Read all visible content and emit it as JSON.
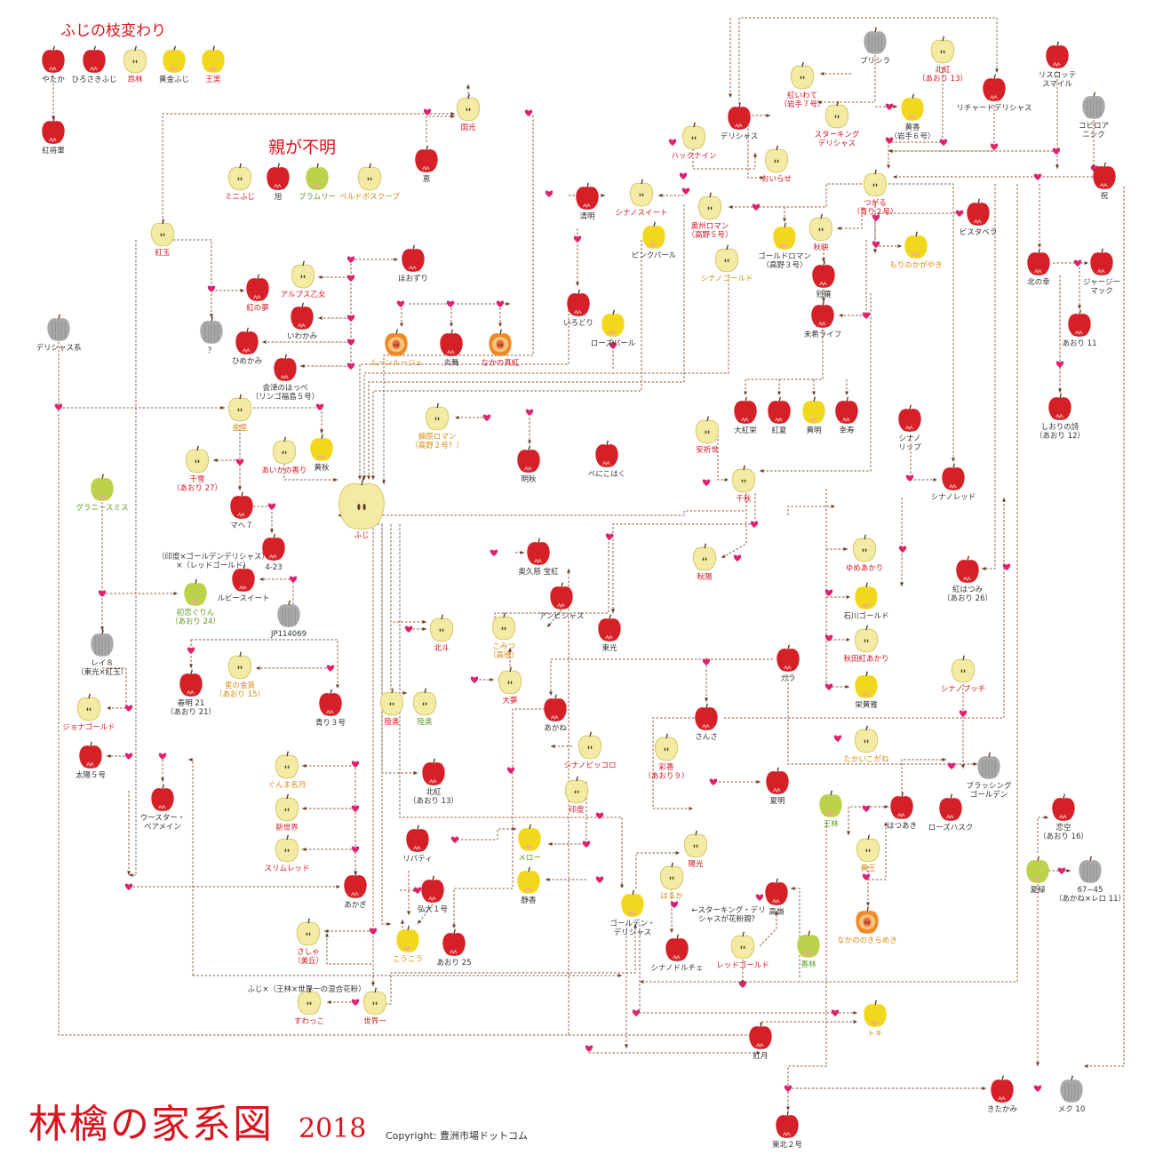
{
  "title": "林檎の家系図",
  "year": "2018",
  "copyright": "Copyright: 豊洲市場ドットコム",
  "sections": {
    "fuji_sports": "ふじの枝変わり",
    "unknown_parents": "親が不明"
  },
  "colors": {
    "red_apple": "#d42026",
    "yellow_apple": "#f2d81c",
    "pale_apple": "#f3eaa3",
    "green_apple": "#bcd24a",
    "unknown_apple": "#a9a9a9",
    "line": "#8a5a3c",
    "heart": "#e0226e",
    "label_red": "#d8141e",
    "label_green": "#5a9a24",
    "label_orange": "#d88a10",
    "label_black": "#333333"
  },
  "varieties": [
    {
      "id": "yataka",
      "label": "やたか",
      "color": "red",
      "text": "black"
    },
    {
      "id": "hirosaki",
      "label": "ひろさきふじ",
      "color": "red",
      "text": "black"
    },
    {
      "id": "sairin",
      "label": "昂林",
      "color": "pale",
      "text": "red"
    },
    {
      "id": "kogane_fuji",
      "label": "黄金ふじ",
      "color": "yellow",
      "text": "black"
    },
    {
      "id": "ojitsu",
      "label": "王実",
      "color": "yellow",
      "text": "red"
    },
    {
      "id": "koshogun",
      "label": "紅将軍",
      "color": "red",
      "text": "black"
    },
    {
      "id": "kokko",
      "label": "国光",
      "color": "pale",
      "text": "red"
    },
    {
      "id": "megumi",
      "label": "恵",
      "color": "red",
      "text": "black"
    },
    {
      "id": "mini_fuji",
      "label": "ミニふじ",
      "color": "pale",
      "text": "red"
    },
    {
      "id": "asahi",
      "label": "旭",
      "color": "red",
      "text": "black"
    },
    {
      "id": "bramley",
      "label": "ブラムリー",
      "color": "green",
      "text": "green"
    },
    {
      "id": "belle",
      "label": "ベルドボスクープ",
      "color": "pale",
      "text": "orange"
    },
    {
      "id": "kogyoku",
      "label": "紅玉",
      "color": "pale",
      "text": "red"
    },
    {
      "id": "beni_no_yume",
      "label": "紅の夢",
      "color": "red",
      "text": "red"
    },
    {
      "id": "alps",
      "label": "アルプス乙女",
      "color": "pale",
      "text": "red"
    },
    {
      "id": "hoozuri",
      "label": "ほおずり",
      "color": "red",
      "text": "black"
    },
    {
      "id": "unknown_q",
      "label": "？",
      "color": "unknown",
      "text": "black"
    },
    {
      "id": "iwakami",
      "label": "いわかみ",
      "color": "red",
      "text": "black"
    },
    {
      "id": "himekami",
      "label": "ひめかみ",
      "color": "red",
      "text": "black"
    },
    {
      "id": "aizu",
      "label": "会津のほっぺ\n（リンゴ福島５号）",
      "color": "red",
      "text": "black"
    },
    {
      "id": "delicious_kei",
      "label": "デリシャス系",
      "color": "unknown",
      "text": "black"
    },
    {
      "id": "kinsei",
      "label": "金星",
      "color": "pale",
      "text": "orange"
    },
    {
      "id": "kojuu",
      "label": "黄秋",
      "color": "yellow",
      "text": "black"
    },
    {
      "id": "aika",
      "label": "あいかの香り",
      "color": "pale",
      "text": "red"
    },
    {
      "id": "chiyuki",
      "label": "千雪\n（あおり 27）",
      "color": "pale",
      "text": "red"
    },
    {
      "id": "mahe7",
      "label": "マヘ７",
      "color": "red",
      "text": "black"
    },
    {
      "id": "mahe_note",
      "label": "（印度×ゴールデンデリシャス）\n×（レッドゴールド）",
      "color": "none",
      "text": "black"
    },
    {
      "id": "423",
      "label": "4-23",
      "color": "red",
      "text": "black"
    },
    {
      "id": "fuji",
      "label": "ふじ",
      "color": "pale",
      "text": "red"
    },
    {
      "id": "granny",
      "label": "グラニースミス",
      "color": "green",
      "text": "green"
    },
    {
      "id": "ruby_sweet",
      "label": "ルビースイート",
      "color": "red",
      "text": "black"
    },
    {
      "id": "jp114069",
      "label": "JP114069",
      "color": "unknown",
      "text": "black"
    },
    {
      "id": "hatsukoi",
      "label": "初恋ぐりん\n（あおり 24）",
      "color": "green",
      "text": "green"
    },
    {
      "id": "rei8",
      "label": "レイ８\n（東光×紅玉）",
      "color": "unknown",
      "text": "black"
    },
    {
      "id": "hoshi",
      "label": "星の金貨\n（あおり 15）",
      "color": "pale",
      "text": "orange"
    },
    {
      "id": "shunmei",
      "label": "春明 21\n（あおり 21）",
      "color": "red",
      "text": "black"
    },
    {
      "id": "aori3",
      "label": "青り３号",
      "color": "red",
      "text": "black"
    },
    {
      "id": "jonagold",
      "label": "ジョナゴールド",
      "color": "pale",
      "text": "red"
    },
    {
      "id": "taiyo5",
      "label": "太陽５号",
      "color": "red",
      "text": "black"
    },
    {
      "id": "worcester",
      "label": "ウースター・\nペアメイン",
      "color": "red",
      "text": "black"
    },
    {
      "id": "gunma",
      "label": "ぐんま名月",
      "color": "pale",
      "text": "orange"
    },
    {
      "id": "shinsekai",
      "label": "新世界",
      "color": "pale",
      "text": "red"
    },
    {
      "id": "slim",
      "label": "スリムレッド",
      "color": "pale",
      "text": "red"
    },
    {
      "id": "akagi",
      "label": "あかぎ",
      "color": "red",
      "text": "black"
    },
    {
      "id": "sasha",
      "label": "さしゃ\n（美丘）",
      "color": "pale",
      "text": "red"
    },
    {
      "id": "sasha_note",
      "label": "ふじ×（王林×世界一の混合花粉）",
      "color": "none",
      "text": "black"
    },
    {
      "id": "suwakko",
      "label": "すわっこ",
      "color": "pale",
      "text": "red"
    },
    {
      "id": "sekaiichi",
      "label": "世界一",
      "color": "pale",
      "text": "red"
    },
    {
      "id": "mutsu_pale",
      "label": "陸奥",
      "color": "pale",
      "text": "red"
    },
    {
      "id": "mutsu_green",
      "label": "陸奥",
      "color": "pale",
      "text": "green"
    },
    {
      "id": "hokuto",
      "label": "北斗",
      "color": "pale",
      "text": "red"
    },
    {
      "id": "kitabeni",
      "label": "北紅\n（あおり 13）",
      "color": "red",
      "text": "black"
    },
    {
      "id": "liberty",
      "label": "リバティ",
      "color": "red",
      "text": "black"
    },
    {
      "id": "hirodai",
      "label": "弘大１号",
      "color": "red",
      "text": "black"
    },
    {
      "id": "kokou",
      "label": "こうこう",
      "color": "yellow",
      "text": "orange"
    },
    {
      "id": "aori25",
      "label": "あおり 25",
      "color": "red",
      "text": "black"
    },
    {
      "id": "seimei",
      "label": "清明",
      "color": "red",
      "text": "black"
    },
    {
      "id": "shinano_sweet",
      "label": "シナノスイート",
      "color": "pale",
      "text": "red"
    },
    {
      "id": "pink_pearl",
      "label": "ピンクパール",
      "color": "yellow",
      "text": "black"
    },
    {
      "id": "irodori",
      "label": "いろどり",
      "color": "red",
      "text": "black"
    },
    {
      "id": "rose_pearl",
      "label": "ローズパール",
      "color": "yellow",
      "text": "black"
    },
    {
      "id": "moon_rouge",
      "label": "ムーンルージュ",
      "color": "cut",
      "text": "orange"
    },
    {
      "id": "enbu",
      "label": "炎舞",
      "color": "red",
      "text": "black"
    },
    {
      "id": "nakano",
      "label": "なかの真紅",
      "color": "cut",
      "text": "red"
    },
    {
      "id": "kokuhara",
      "label": "錦原ロマン\n（高野２号？）",
      "color": "pale",
      "text": "orange"
    },
    {
      "id": "meishu",
      "label": "明秋",
      "color": "red",
      "text": "black"
    },
    {
      "id": "benikohaku",
      "label": "べにこはく",
      "color": "red",
      "text": "black"
    },
    {
      "id": "okukuji",
      "label": "奥久慈 宝紅",
      "color": "red",
      "text": "black"
    },
    {
      "id": "ambisius",
      "label": "アンビシャス",
      "color": "red",
      "text": "black"
    },
    {
      "id": "toko",
      "label": "東光",
      "color": "red",
      "text": "black"
    },
    {
      "id": "komitsu",
      "label": "こみつ\n（高徳）",
      "color": "pale",
      "text": "orange"
    },
    {
      "id": "taisho",
      "label": "大夢",
      "color": "pale",
      "text": "red"
    },
    {
      "id": "akane",
      "label": "あかね",
      "color": "red",
      "text": "black"
    },
    {
      "id": "shinano_piccolo",
      "label": "シナノピッコロ",
      "color": "pale",
      "text": "red"
    },
    {
      "id": "indo",
      "label": "印度",
      "color": "pale",
      "text": "red"
    },
    {
      "id": "mellow",
      "label": "メロー",
      "color": "yellow",
      "text": "green"
    },
    {
      "id": "shizuka",
      "label": "静香",
      "color": "yellow",
      "text": "black"
    },
    {
      "id": "golden",
      "label": "ゴールデン・\nデリシャス",
      "color": "yellow",
      "text": "black"
    },
    {
      "id": "haruka",
      "label": "はるか",
      "color": "pale",
      "text": "orange"
    },
    {
      "id": "haruka_note",
      "label": "←スターキング・デリ\nシャスが花粉親？",
      "color": "none",
      "text": "black"
    },
    {
      "id": "yoko",
      "label": "陽光",
      "color": "pale",
      "text": "red"
    },
    {
      "id": "ayaka",
      "label": "彩香\n（あおり９）",
      "color": "pale",
      "text": "red"
    },
    {
      "id": "shinano_dolce",
      "label": "シナノドルチェ",
      "color": "red",
      "text": "black"
    },
    {
      "id": "red_gold",
      "label": "レッドゴールド",
      "color": "pale",
      "text": "red"
    },
    {
      "id": "korin",
      "label": "香林",
      "color": "green",
      "text": "green"
    },
    {
      "id": "takane",
      "label": "高嶺",
      "color": "red",
      "text": "black"
    },
    {
      "id": "toki",
      "label": "トキ",
      "color": "yellow",
      "text": "orange"
    },
    {
      "id": "kougetsu",
      "label": "紅月",
      "color": "red",
      "text": "black"
    },
    {
      "id": "tohoku2",
      "label": "東北２号",
      "color": "red",
      "text": "black"
    },
    {
      "id": "delicious",
      "label": "デリシャス",
      "color": "red",
      "text": "black"
    },
    {
      "id": "hakku",
      "label": "ハックナイン",
      "color": "pale",
      "text": "red"
    },
    {
      "id": "beni_iwate",
      "label": "紅いわて\n（岩手７号）",
      "color": "pale",
      "text": "red"
    },
    {
      "id": "starking",
      "label": "スターキング\nデリシャス",
      "color": "pale",
      "text": "red"
    },
    {
      "id": "prisila",
      "label": "プリシラ",
      "color": "unknown",
      "text": "black"
    },
    {
      "id": "hokko",
      "label": "北紅\n（あおり 13）",
      "color": "pale",
      "text": "red"
    },
    {
      "id": "kinkou",
      "label": "黄香\n（岩手６号）",
      "color": "yellow",
      "text": "black"
    },
    {
      "id": "richard",
      "label": "リチャードデリシャス",
      "color": "red",
      "text": "black"
    },
    {
      "id": "lisrotte",
      "label": "リスロッテ\nスマイル",
      "color": "red",
      "text": "black"
    },
    {
      "id": "kopiroa",
      "label": "コピロア\nニシク",
      "color": "unknown",
      "text": "black"
    },
    {
      "id": "oirase",
      "label": "おいらせ",
      "color": "pale",
      "text": "red"
    },
    {
      "id": "tsugaru",
      "label": "つがる\n（青り２号）",
      "color": "pale",
      "text": "red"
    },
    {
      "id": "iwai",
      "label": "祝",
      "color": "red",
      "text": "black"
    },
    {
      "id": "oshu",
      "label": "奥州ロマン\n（高野５号）",
      "color": "pale",
      "text": "red"
    },
    {
      "id": "golden_roman",
      "label": "ゴールドロマン\n（高野３号）",
      "color": "yellow",
      "text": "black"
    },
    {
      "id": "akibae",
      "label": "秋映",
      "color": "pale",
      "text": "red"
    },
    {
      "id": "morino",
      "label": "もりのかがやき",
      "color": "yellow",
      "text": "orange"
    },
    {
      "id": "vistabella",
      "label": "ビスタベラ",
      "color": "red",
      "text": "black"
    },
    {
      "id": "shinano_gold",
      "label": "シナノゴールド",
      "color": "pale",
      "text": "orange"
    },
    {
      "id": "kanmuri",
      "label": "冠羅",
      "color": "red",
      "text": "black"
    },
    {
      "id": "miki",
      "label": "未希ライフ",
      "color": "red",
      "text": "black"
    },
    {
      "id": "kitanosachi",
      "label": "北の幸",
      "color": "red",
      "text": "black"
    },
    {
      "id": "jersey",
      "label": "ジャージー\nマック",
      "color": "red",
      "text": "black"
    },
    {
      "id": "aori11",
      "label": "あおり 11",
      "color": "red",
      "text": "black"
    },
    {
      "id": "shiori",
      "label": "しおりの詩\n（あおり 12）",
      "color": "red",
      "text": "black"
    },
    {
      "id": "daikoukyu",
      "label": "大紅栄",
      "color": "red",
      "text": "black"
    },
    {
      "id": "kouka",
      "label": "紅夏",
      "color": "red",
      "text": "black"
    },
    {
      "id": "komei",
      "label": "黄明",
      "color": "yellow",
      "text": "black"
    },
    {
      "id": "kotobuki",
      "label": "幸寿",
      "color": "red",
      "text": "black"
    },
    {
      "id": "yasuiyo",
      "label": "安祈世",
      "color": "pale",
      "text": "red"
    },
    {
      "id": "shinano_lip",
      "label": "シナノ\nリップ",
      "color": "red",
      "text": "black"
    },
    {
      "id": "shinano_red",
      "label": "シナノレッド",
      "color": "red",
      "text": "black"
    },
    {
      "id": "senshu",
      "label": "千秋",
      "color": "pale",
      "text": "red"
    },
    {
      "id": "shuyo",
      "label": "秋陽",
      "color": "pale",
      "text": "red"
    },
    {
      "id": "yumeakari",
      "label": "ゆめあかり",
      "color": "pale",
      "text": "red"
    },
    {
      "id": "ishikawa",
      "label": "石川ゴールド",
      "color": "yellow",
      "text": "black"
    },
    {
      "id": "akita",
      "label": "秋田紅あかり",
      "color": "pale",
      "text": "red"
    },
    {
      "id": "eikoga",
      "label": "栄黄雅",
      "color": "yellow",
      "text": "black"
    },
    {
      "id": "benihatsumi",
      "label": "紅はつみ\n（あおり 26）",
      "color": "red",
      "text": "black"
    },
    {
      "id": "gala",
      "label": "ガラ",
      "color": "red",
      "text": "black"
    },
    {
      "id": "sansa",
      "label": "さんさ",
      "color": "red",
      "text": "black"
    },
    {
      "id": "shinano_petit",
      "label": "シナノプッチ",
      "color": "pale",
      "text": "red"
    },
    {
      "id": "takaiko",
      "label": "たかいこがね",
      "color": "pale",
      "text": "orange"
    },
    {
      "id": "kaimei",
      "label": "夏明",
      "color": "red",
      "text": "black"
    },
    {
      "id": "blushing",
      "label": "ブラッシング\nゴールデン",
      "color": "unknown",
      "text": "black"
    },
    {
      "id": "orin",
      "label": "王林",
      "color": "green",
      "text": "green"
    },
    {
      "id": "hatsuaki",
      "label": "はつあき",
      "color": "red",
      "text": "black"
    },
    {
      "id": "rose_husk",
      "label": "ローズハスク",
      "color": "red",
      "text": "black"
    },
    {
      "id": "koo",
      "label": "黄王",
      "color": "pale",
      "text": "orange"
    },
    {
      "id": "nakanono",
      "label": "なかののきらめき",
      "color": "cut",
      "text": "orange"
    },
    {
      "id": "koisora",
      "label": "恋空\n（あおり 16）",
      "color": "red",
      "text": "black"
    },
    {
      "id": "natsumidori",
      "label": "夏緑",
      "color": "green",
      "text": "black"
    },
    {
      "id": "6745",
      "label": "67−45\n（あかね×レロ 11）",
      "color": "unknown",
      "text": "black"
    },
    {
      "id": "kitakami",
      "label": "きたかみ",
      "color": "red",
      "text": "black"
    },
    {
      "id": "meku10",
      "label": "メク 10",
      "color": "unknown",
      "text": "black"
    }
  ]
}
